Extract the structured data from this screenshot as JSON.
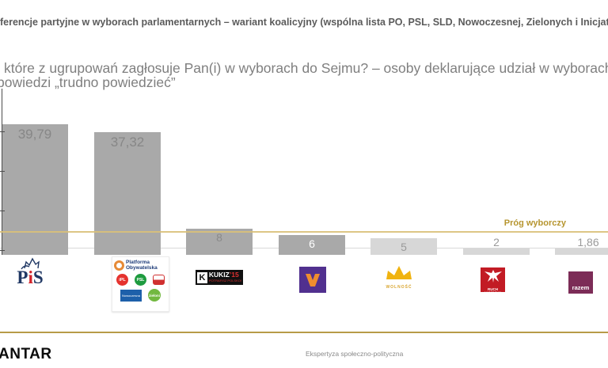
{
  "header": {
    "title": "ferencje partyjne w wyborach parlamentarnych – wariant koalicyjny (wspólna lista PO, PSL, SLD, Nowoczesnej, Zielonych i Inicjatywy Polsk",
    "subtitle_line1": "które z ugrupowań zagłosuje Pan(i) w wyborach do Sejmu? – osoby deklarujące udział w wyborach bez",
    "subtitle_line2": "powiedzi „trudno powiedzieć”"
  },
  "chart_data": {
    "type": "bar",
    "title": "Preferencje partyjne w wyborach parlamentarnych – wariant koalicyjny (tekst częściowo ucięty na krawędziach)",
    "categories": [
      "PiS",
      "Wspólna lista PO, PSL, SLD, Nowoczesnej, Zielonych i iPL",
      "Kukiz'15",
      "Wiosna",
      "Wolność",
      "Ruch Narodowy",
      "Razem"
    ],
    "values": [
      39.79,
      37.32,
      8,
      6,
      5,
      2,
      1.86
    ],
    "value_labels": [
      "39,79",
      "37,32",
      "8",
      "6",
      "5",
      "2",
      "1,86"
    ],
    "bar_styles": [
      "solid",
      "solid",
      "solid",
      "solid",
      "light",
      "light",
      "light"
    ],
    "label_styles": [
      "gray-large",
      "gray-large",
      "gray",
      "white",
      "gray-light",
      "gray-light",
      "gray-light"
    ],
    "threshold": {
      "label": "Próg wyborczy",
      "value": 7
    },
    "xlabel": "",
    "ylabel": "",
    "ylim": [
      0,
      42
    ],
    "grid": false,
    "legend_position": "none"
  },
  "colors": {
    "bar_solid": "#a9a9a9",
    "bar_light": "#d7d7d7",
    "label_gray_large": "#878787",
    "label_gray": "#8a8a8a",
    "label_white": "#ffffff",
    "label_gray_light": "#9a9a9a",
    "threshold_line": "#d9c078",
    "threshold_text": "#b6952f",
    "axis": "#4d4d4d",
    "baseline": "#d9d9d9"
  },
  "logos": {
    "pis": {
      "p": "P",
      "i": "i",
      "s": "S"
    },
    "coalition": {
      "po_line1": "Platforma",
      "po_line2": "Obywatelska",
      "ipl": "iPL",
      "psl": "PSL",
      "nowoczesna": "Nowoczesna",
      "zieloni": "zieloni"
    },
    "kukiz": {
      "k": "K",
      "name": "KUKIZ",
      "num": "’15",
      "sub": "POTRAFISZ POLSKO!"
    },
    "wolnosc": {
      "name": "WOLNOŚĆ"
    },
    "ruch": {
      "line1": "RUCH",
      "line2": "NARODOWY"
    },
    "razem": {
      "name": "razem"
    }
  },
  "footer": {
    "brand": "ANTAR",
    "note": "Ekspertyza społeczno-polityczna"
  }
}
